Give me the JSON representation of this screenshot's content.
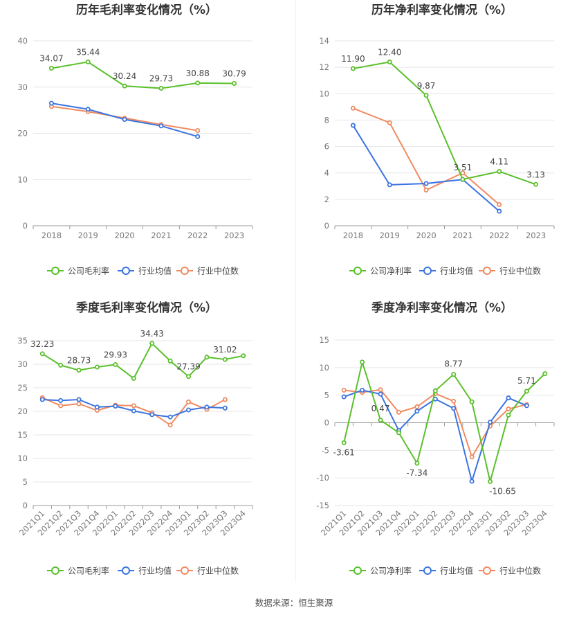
{
  "source": "数据来源：恒生聚源",
  "colors": {
    "company": "#5ac02b",
    "avg": "#3b74e0",
    "median": "#f08a60",
    "grid": "#e6e6e6",
    "axis": "#999999"
  },
  "chart_data": [
    {
      "type": "line",
      "title": "历年毛利率变化情况（%）",
      "categories": [
        "2018",
        "2019",
        "2020",
        "2021",
        "2022",
        "2023"
      ],
      "ylim": [
        0,
        40
      ],
      "yticks": [
        0,
        10,
        20,
        30,
        40
      ],
      "grid": true,
      "legend": "bottom",
      "series": [
        {
          "name": "公司毛利率",
          "values": [
            34.07,
            35.44,
            30.24,
            29.73,
            30.88,
            30.79
          ],
          "labels": [
            "34.07",
            "35.44",
            "30.24",
            "29.73",
            "30.88",
            "30.79"
          ]
        },
        {
          "name": "行业均值",
          "values": [
            26.5,
            25.2,
            23.0,
            21.6,
            19.3,
            null
          ]
        },
        {
          "name": "行业中位数",
          "values": [
            25.8,
            24.7,
            23.3,
            21.9,
            20.6,
            null
          ]
        }
      ]
    },
    {
      "type": "line",
      "title": "历年净利率变化情况（%）",
      "categories": [
        "2018",
        "2019",
        "2020",
        "2021",
        "2022",
        "2023"
      ],
      "ylim": [
        0,
        14
      ],
      "yticks": [
        0,
        2,
        4,
        6,
        8,
        10,
        12,
        14
      ],
      "grid": true,
      "legend": "bottom",
      "series": [
        {
          "name": "公司净利率",
          "values": [
            11.9,
            12.4,
            9.87,
            3.51,
            4.11,
            3.13
          ],
          "labels": [
            "11.90",
            "12.40",
            "9.87",
            "3.51",
            "4.11",
            "3.13"
          ]
        },
        {
          "name": "行业均值",
          "values": [
            7.6,
            3.1,
            3.2,
            3.5,
            1.1,
            null
          ]
        },
        {
          "name": "行业中位数",
          "values": [
            8.9,
            7.8,
            2.7,
            4.0,
            1.6,
            null
          ]
        }
      ]
    },
    {
      "type": "line",
      "title": "季度毛利率变化情况（%）",
      "categories": [
        "2021Q1",
        "2021Q2",
        "2021Q3",
        "2021Q4",
        "2022Q1",
        "2022Q2",
        "2022Q3",
        "2022Q4",
        "2023Q1",
        "2023Q2",
        "2023Q3",
        "2023Q4"
      ],
      "ylim": [
        0,
        35
      ],
      "yticks": [
        0,
        5,
        10,
        15,
        20,
        25,
        30,
        35
      ],
      "grid": true,
      "legend": "bottom",
      "series": [
        {
          "name": "公司毛利率",
          "values": [
            32.23,
            29.8,
            28.73,
            29.4,
            29.93,
            27.0,
            34.43,
            30.7,
            27.39,
            31.5,
            31.02,
            31.8
          ],
          "labels": [
            "32.23",
            "",
            "28.73",
            "",
            "29.93",
            "",
            "34.43",
            "",
            "27.39",
            "",
            "31.02",
            ""
          ]
        },
        {
          "name": "行业均值",
          "values": [
            22.5,
            22.3,
            22.5,
            20.9,
            21.1,
            20.1,
            19.3,
            18.8,
            20.3,
            20.9,
            20.7,
            null
          ]
        },
        {
          "name": "行业中位数",
          "values": [
            22.9,
            21.2,
            21.6,
            20.2,
            21.3,
            21.2,
            19.7,
            17.1,
            22.0,
            20.4,
            22.5,
            null
          ]
        }
      ]
    },
    {
      "type": "line",
      "title": "季度净利率变化情况（%）",
      "categories": [
        "2021Q1",
        "2021Q2",
        "2021Q3",
        "2021Q4",
        "2022Q1",
        "2022Q2",
        "2022Q3",
        "2022Q4",
        "2023Q1",
        "2023Q2",
        "2023Q3",
        "2023Q4"
      ],
      "ylim": [
        -15,
        15
      ],
      "yticks": [
        -15,
        -10,
        -5,
        0,
        5,
        10,
        15
      ],
      "grid": true,
      "legend": "bottom",
      "series": [
        {
          "name": "公司净利率",
          "values": [
            -3.61,
            11.0,
            0.47,
            -1.8,
            -7.34,
            5.8,
            8.77,
            3.8,
            -10.65,
            1.4,
            5.71,
            8.9
          ],
          "labels": [
            "-3.61",
            "",
            "0.47",
            "",
            "-7.34",
            "",
            "8.77",
            "",
            "-10.65",
            "",
            "5.71",
            ""
          ]
        },
        {
          "name": "行业均值",
          "values": [
            4.7,
            5.9,
            5.2,
            -1.4,
            2.1,
            4.3,
            2.6,
            -10.6,
            0.1,
            4.5,
            3.1,
            null
          ]
        },
        {
          "name": "行业中位数",
          "values": [
            5.9,
            5.5,
            6.0,
            1.9,
            2.9,
            5.3,
            3.9,
            -6.2,
            -0.6,
            2.5,
            3.3,
            null
          ]
        }
      ]
    }
  ]
}
